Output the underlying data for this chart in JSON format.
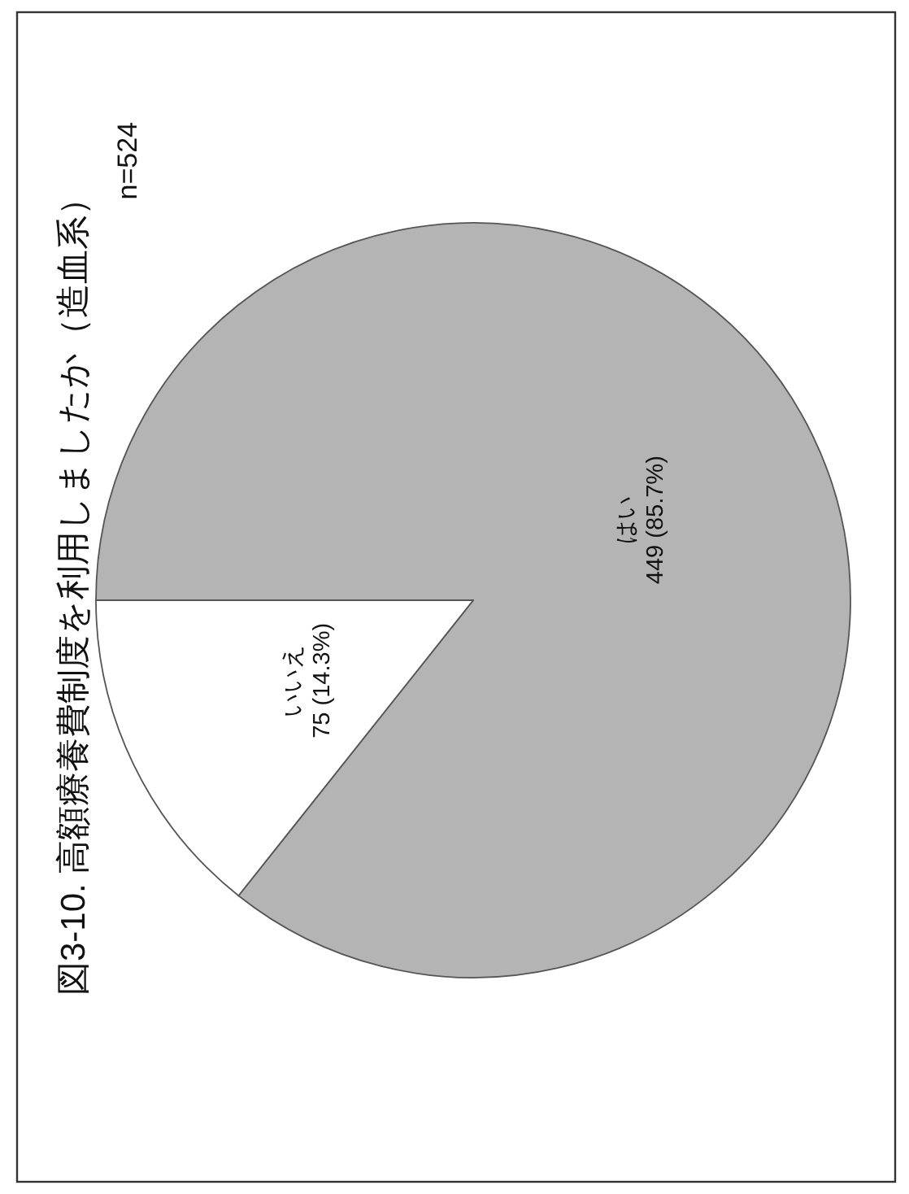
{
  "chart_data": {
    "type": "pie",
    "title": "図3-10. 高額療養費制度を利用しましたか（造血系）",
    "annotations": [
      "n=524"
    ],
    "categories": [
      "はい",
      "いいえ"
    ],
    "values": [
      449,
      75
    ],
    "colors": [
      "#b4b4b4",
      "#ffffff"
    ],
    "value_labels": [
      "449 (85.7%)",
      "75 (14.3%)"
    ]
  }
}
